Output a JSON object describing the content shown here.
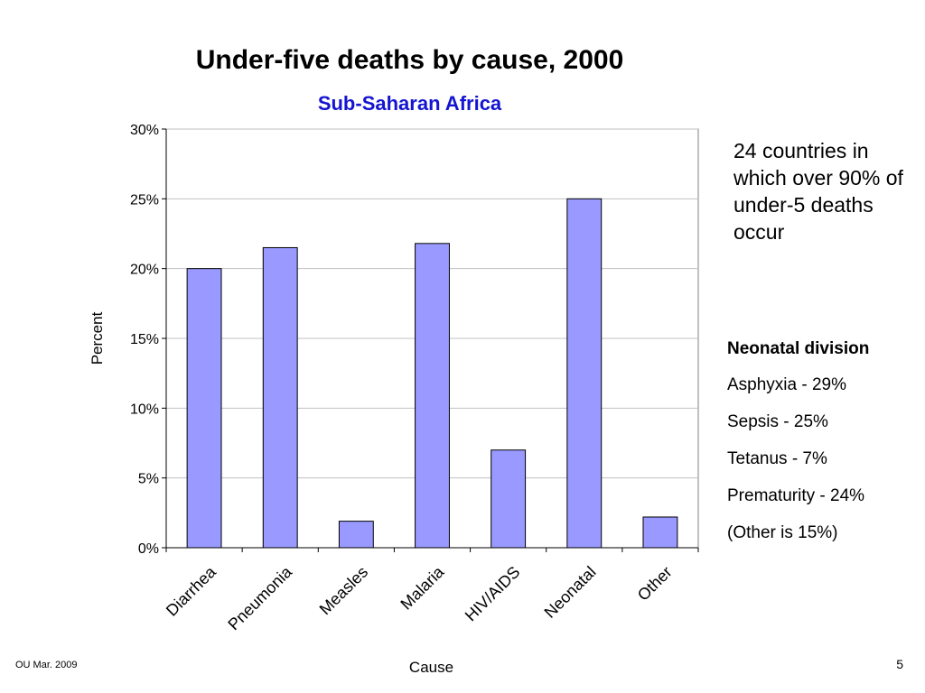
{
  "chart_data": {
    "type": "bar",
    "title": "Under-five deaths by cause, 2000",
    "subtitle": "Sub-Saharan Africa",
    "xlabel": "Cause",
    "ylabel": "Percent",
    "categories": [
      "Diarrhea",
      "Pneumonia",
      "Measles",
      "Malaria",
      "HIV/AIDS",
      "Neonatal",
      "Other"
    ],
    "values": [
      20.0,
      21.5,
      1.9,
      21.8,
      7.0,
      25.0,
      2.2
    ],
    "ylim": [
      0,
      30
    ],
    "yticks": [
      0,
      5,
      10,
      15,
      20,
      25,
      30
    ],
    "ytick_labels": [
      "0%",
      "5%",
      "10%",
      "15%",
      "20%",
      "25%",
      "30%"
    ],
    "grid": true,
    "legend": "none",
    "colors": {
      "bar_fill": "#9999ff",
      "bar_stroke": "#000000",
      "grid": "#c0c0c0",
      "subtitle": "#1414d2"
    }
  },
  "annotations": {
    "coverage_note": "24 countries in which over 90% of under-5 deaths occur",
    "neonatal_heading": "Neonatal division",
    "neonatal_items": [
      "Asphyxia - 29%",
      "Sepsis  - 25%",
      "Tetanus  - 7%",
      "Prematurity  - 24%",
      "(Other is 15%)"
    ]
  },
  "footer": {
    "source": "OU Mar. 2009",
    "page_number": "5"
  }
}
